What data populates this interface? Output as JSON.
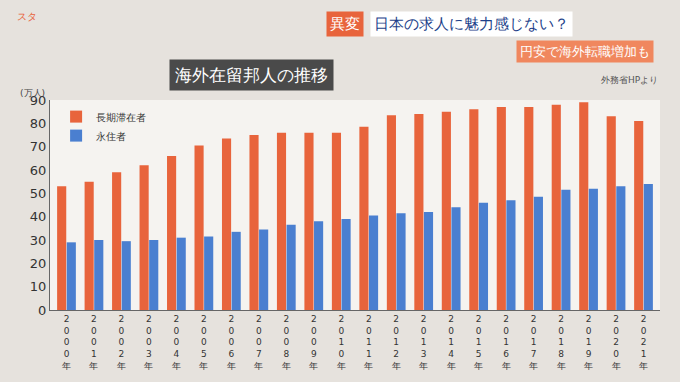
{
  "chart_data": {
    "type": "bar",
    "title": "海外在留邦人の推移",
    "source": "外務省HPより",
    "y_label": "(万人)",
    "annotations": [
      "スタ",
      "異変",
      "日本の求人に魅力感じない？",
      "円安で海外転職増加も"
    ],
    "categories": [
      "2000年",
      "2001年",
      "2002年",
      "2003年",
      "2004年",
      "2005年",
      "2006年",
      "2007年",
      "2008年",
      "2009年",
      "2010年",
      "2011年",
      "2012年",
      "2013年",
      "2014年",
      "2015年",
      "2016年",
      "2017年",
      "2018年",
      "2019年",
      "2020年",
      "2021年"
    ],
    "series": [
      {
        "name": "長期滞在者",
        "color": "#e8643c",
        "values": [
          53,
          55,
          59,
          62,
          66,
          70.5,
          73.5,
          75,
          76,
          76,
          76,
          78.5,
          83.5,
          84,
          85,
          86,
          87,
          87,
          88,
          89,
          83,
          81
        ]
      },
      {
        "name": "永住者",
        "color": "#4a7fd0",
        "values": [
          29,
          30,
          29.5,
          30,
          31,
          31.5,
          33.5,
          34.5,
          36.5,
          38,
          39,
          40.5,
          41.5,
          42,
          44,
          46,
          47,
          48.5,
          51.5,
          52,
          53,
          54
        ]
      }
    ],
    "ylim": [
      0,
      90
    ],
    "yticks": [
      0,
      10,
      20,
      30,
      40,
      50,
      60,
      70,
      80,
      90
    ],
    "grid": false,
    "legend": "top left"
  }
}
